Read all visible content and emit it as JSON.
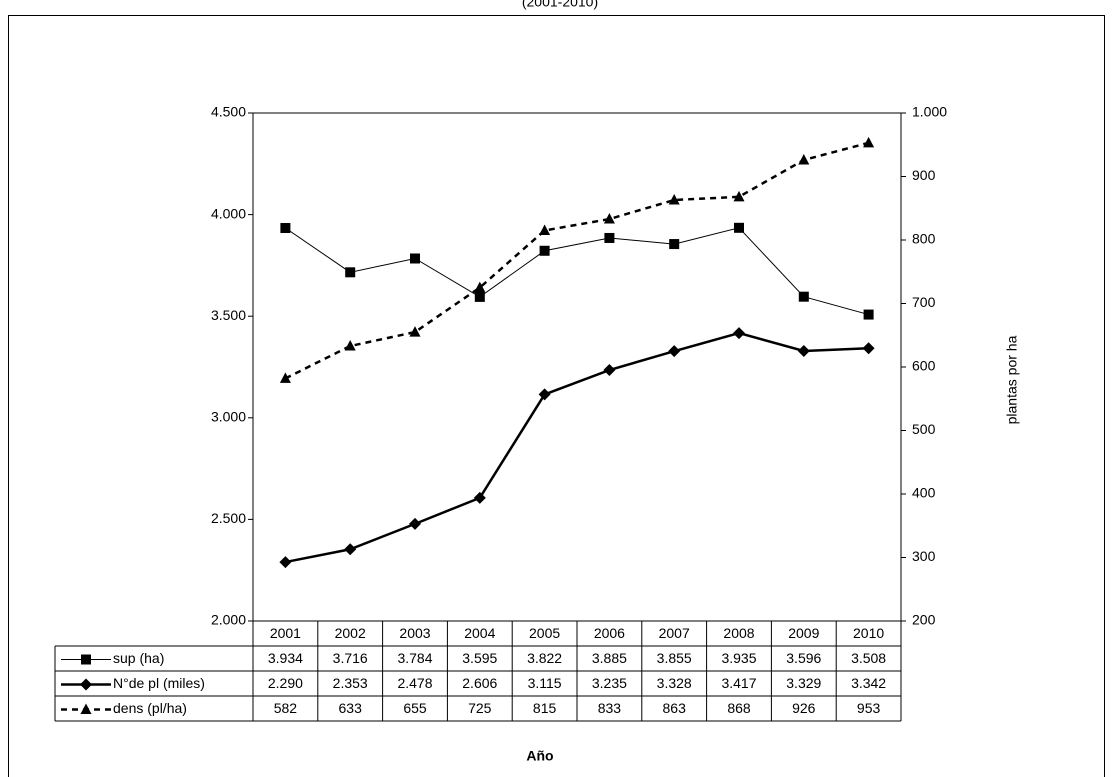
{
  "chart_data": {
    "type": "line",
    "title": "(2001-2010)",
    "x_label": "Año",
    "y2_label": "plantas por ha",
    "categories": [
      "2001",
      "2002",
      "2003",
      "2004",
      "2005",
      "2006",
      "2007",
      "2008",
      "2009",
      "2010"
    ],
    "ylim": [
      2000,
      4500
    ],
    "yticks": [
      {
        "value": 2000,
        "label": "2.000"
      },
      {
        "value": 2500,
        "label": "2.500"
      },
      {
        "value": 3000,
        "label": "3.000"
      },
      {
        "value": 3500,
        "label": "3.500"
      },
      {
        "value": 4000,
        "label": "4.000"
      },
      {
        "value": 4500,
        "label": "4.500"
      }
    ],
    "y2lim": [
      200,
      1000
    ],
    "y2ticks": [
      200,
      300,
      400,
      500,
      600,
      700,
      800,
      900,
      {
        "value": 1000,
        "label": "1.000"
      }
    ],
    "series": [
      {
        "name": "sup (ha)",
        "color": "#000000",
        "marker": "square",
        "line_width": 1,
        "dashed": false,
        "values": [
          3934,
          3716,
          3784,
          3595,
          3822,
          3885,
          3855,
          3935,
          3596,
          3508
        ],
        "value_labels": [
          "3.934",
          "3.716",
          "3.784",
          "3.595",
          "3.822",
          "3.885",
          "3.855",
          "3.935",
          "3.596",
          "3.508"
        ]
      },
      {
        "name": "N°de pl (miles)",
        "color": "#000000",
        "marker": "diamond",
        "line_width": 2.5,
        "dashed": false,
        "values": [
          2290,
          2353,
          2478,
          2606,
          3115,
          3235,
          3328,
          3417,
          3329,
          3342
        ],
        "value_labels": [
          "2.290",
          "2.353",
          "2.478",
          "2.606",
          "3.115",
          "3.235",
          "3.328",
          "3.417",
          "3.329",
          "3.342"
        ]
      },
      {
        "name": "dens (pl/ha)",
        "color": "#000000",
        "marker": "triangle",
        "line_width": 2.5,
        "dashed": true,
        "axis": "y2",
        "values": [
          582,
          633,
          655,
          725,
          815,
          833,
          863,
          868,
          926,
          953
        ]
      }
    ]
  }
}
